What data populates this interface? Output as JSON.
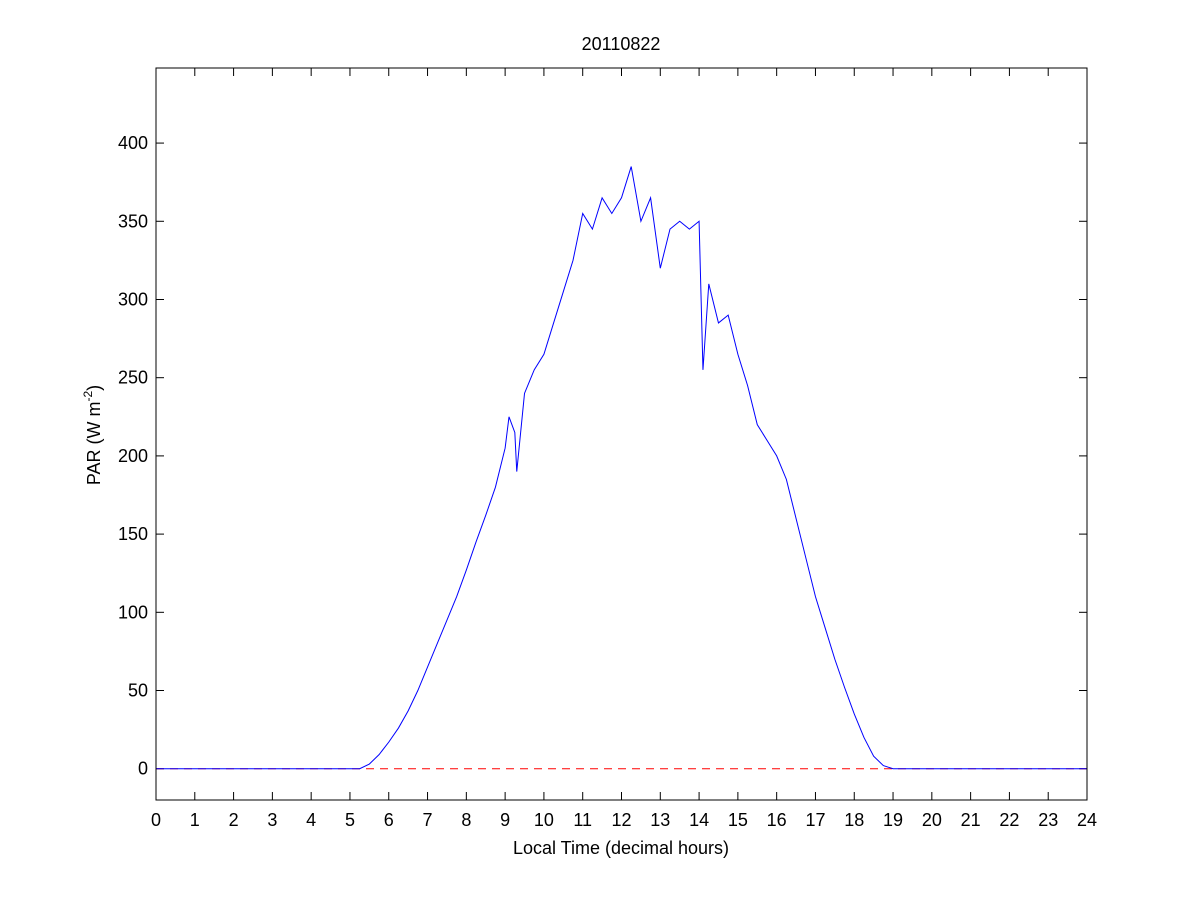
{
  "chart_data": {
    "type": "line",
    "title": "20110822",
    "xlabel": "Local Time (decimal hours)",
    "ylabel": {
      "text": "PAR (W m",
      "sup": "-2",
      "end": ")"
    },
    "xlim": [
      0,
      24
    ],
    "ylim": [
      -20,
      448
    ],
    "xticks": [
      0,
      1,
      2,
      3,
      4,
      5,
      6,
      7,
      8,
      9,
      10,
      11,
      12,
      13,
      14,
      15,
      16,
      17,
      18,
      19,
      20,
      21,
      22,
      23,
      24
    ],
    "yticks": [
      0,
      50,
      100,
      150,
      200,
      250,
      300,
      350,
      400
    ],
    "grid": false,
    "reference_line": {
      "value": 0,
      "color": "#ff0000",
      "dashed": true
    },
    "series": [
      {
        "color": "#0000ff",
        "x": [
          0,
          5.25,
          5.5,
          5.75,
          6,
          6.25,
          6.5,
          6.75,
          7,
          7.25,
          7.5,
          7.75,
          8,
          8.25,
          8.5,
          8.75,
          9,
          9.1,
          9.25,
          9.3,
          9.5,
          9.75,
          10,
          10.25,
          10.5,
          10.75,
          11,
          11.25,
          11.5,
          11.75,
          12,
          12.25,
          12.5,
          12.75,
          13,
          13.25,
          13.5,
          13.75,
          14,
          14.1,
          14.25,
          14.5,
          14.75,
          15,
          15.25,
          15.5,
          15.75,
          16,
          16.25,
          16.5,
          16.75,
          17,
          17.25,
          17.5,
          17.75,
          18,
          18.25,
          18.5,
          18.75,
          19,
          24
        ],
        "values": [
          0,
          0,
          3,
          9,
          17,
          26,
          37,
          50,
          65,
          80,
          95,
          110,
          127,
          145,
          162,
          180,
          205,
          225,
          215,
          190,
          240,
          255,
          265,
          285,
          305,
          325,
          355,
          345,
          365,
          355,
          365,
          385,
          350,
          365,
          320,
          345,
          350,
          345,
          350,
          255,
          310,
          285,
          290,
          265,
          245,
          220,
          210,
          200,
          185,
          160,
          135,
          110,
          90,
          70,
          52,
          35,
          20,
          8,
          2,
          0,
          0
        ]
      }
    ]
  }
}
